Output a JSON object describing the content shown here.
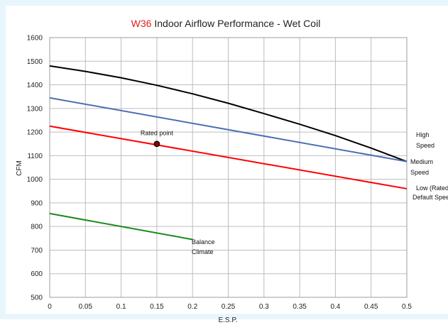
{
  "chart_data": {
    "type": "line",
    "title_model": "W36",
    "title_rest": " Indoor Airflow Performance - Wet Coil",
    "xlabel": "E.S.P.",
    "ylabel": "CFM",
    "xlim": [
      0,
      0.5
    ],
    "ylim": [
      500,
      1600
    ],
    "grid": true,
    "x_ticks": [
      "0",
      "0.05",
      "0.1",
      "0.15",
      "0.2",
      "0.25",
      "0.3",
      "0.35",
      "0.4",
      "0.45",
      "0.5"
    ],
    "y_ticks": [
      "500",
      "600",
      "700",
      "800",
      "900",
      "1000",
      "1100",
      "1200",
      "1300",
      "1400",
      "1500",
      "1600"
    ],
    "series": [
      {
        "name": "High Speed",
        "label_lines": [
          "High",
          "Speed"
        ],
        "color": "#000000",
        "x": [
          0,
          0.05,
          0.1,
          0.15,
          0.2,
          0.25,
          0.3,
          0.35,
          0.4,
          0.45,
          0.5
        ],
        "y": [
          1480,
          1457,
          1430,
          1398,
          1362,
          1322,
          1278,
          1233,
          1185,
          1132,
          1075
        ]
      },
      {
        "name": "Medium Speed",
        "label_lines": [
          "Medium",
          "Speed"
        ],
        "color": "#4a6fb5",
        "x": [
          0,
          0.5
        ],
        "y": [
          1345,
          1075
        ]
      },
      {
        "name": "Low (Rated) Default Speed",
        "label_lines": [
          "Low (Rated)",
          "Default Speed"
        ],
        "color": "#ff0000",
        "x": [
          0,
          0.5
        ],
        "y": [
          1225,
          960
        ]
      },
      {
        "name": "Balance Climate",
        "label_lines": [
          "Balance",
          "Climate"
        ],
        "color": "#1a8a1a",
        "x": [
          0,
          0.2
        ],
        "y": [
          855,
          745
        ]
      }
    ],
    "annotations": [
      {
        "text": "Rated point",
        "x": 0.15,
        "y": 1150,
        "color": "#8b0000"
      }
    ]
  }
}
